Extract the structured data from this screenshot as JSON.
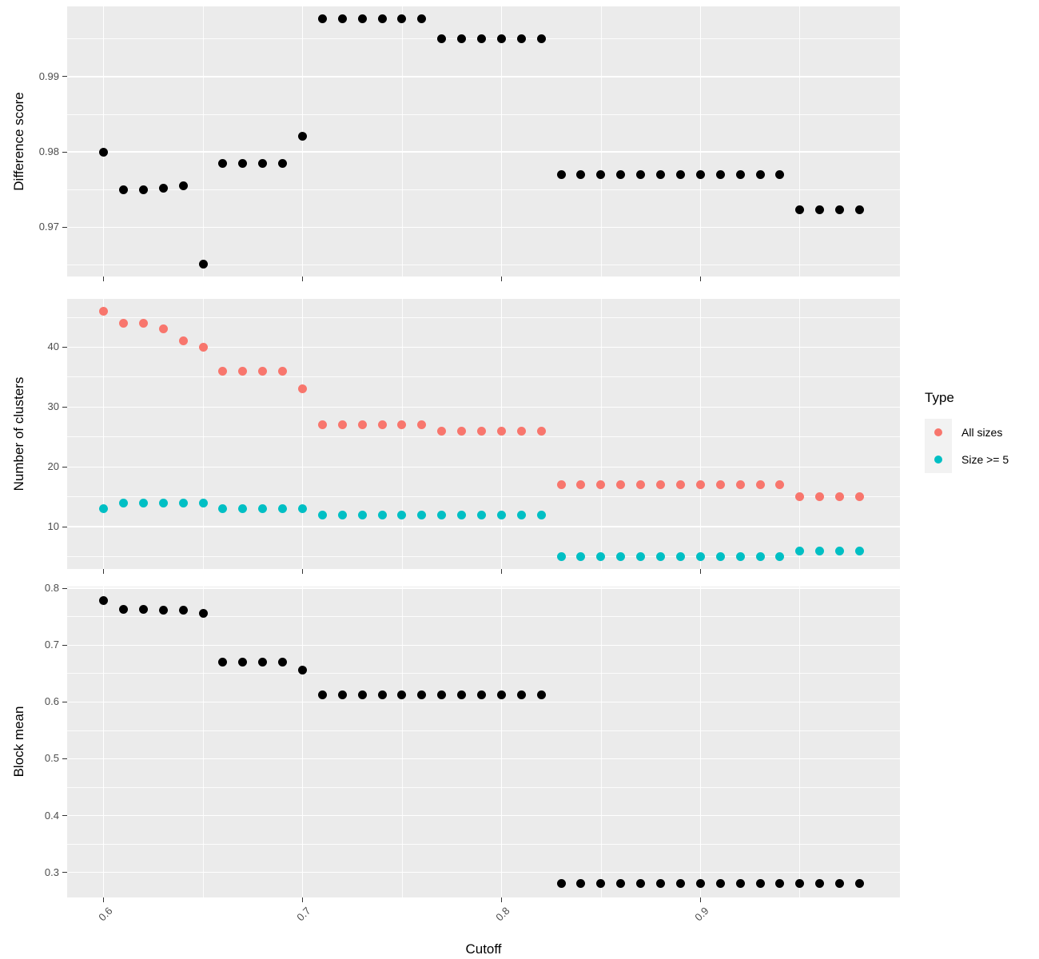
{
  "figure": {
    "xlabel": "Cutoff",
    "x_tick_labels": [
      "0.6",
      "0.7",
      "0.8",
      "0.9"
    ],
    "legend": {
      "title": "Type",
      "position": "right",
      "items": [
        {
          "label": "All sizes",
          "color": "#F8766D"
        },
        {
          "label": "Size >= 5",
          "color": "#00BFC4"
        }
      ]
    },
    "colors": {
      "background": "#FFFFFF",
      "panel_background": "#EBEBEB",
      "gridline": "#FFFFFF",
      "tick_text": "#4D4D4D",
      "axis_title_text": "#000000",
      "black_points": "#000000",
      "all_sizes_points": "#F8766D",
      "size_ge_5_points": "#00BFC4",
      "legend_key_background": "#F2F2F2"
    }
  },
  "x_axis": {
    "label": "Cutoff",
    "ticks": [
      0.6,
      0.7,
      0.8,
      0.9
    ],
    "minor_ticks": [
      0.65,
      0.75,
      0.85,
      0.95
    ],
    "xlim": [
      0.5817,
      1.0003
    ]
  },
  "chart_data": [
    {
      "type": "scatter",
      "ylabel": "Difference score",
      "xlabel": "Cutoff",
      "grid": true,
      "ylim": [
        0.96347,
        0.99933
      ],
      "yticks": [
        0.97,
        0.98,
        0.99
      ],
      "ytick_labels": [
        "0.97",
        "0.98",
        "0.99"
      ],
      "minor_yticks": [
        0.965,
        0.975,
        0.985,
        0.995
      ],
      "x": [
        0.6,
        0.61,
        0.62,
        0.63,
        0.64,
        0.65,
        0.66,
        0.67,
        0.68,
        0.69,
        0.7,
        0.71,
        0.72,
        0.73,
        0.74,
        0.75,
        0.76,
        0.77,
        0.78,
        0.79,
        0.8,
        0.81,
        0.82,
        0.83,
        0.84,
        0.85,
        0.86,
        0.87,
        0.88,
        0.89,
        0.9,
        0.91,
        0.92,
        0.93,
        0.94,
        0.95,
        0.96,
        0.97,
        0.98
      ],
      "series": [
        {
          "name": "Difference score",
          "color": "#000000",
          "values": [
            0.98,
            0.975,
            0.975,
            0.9752,
            0.9755,
            0.9651,
            0.9785,
            0.9785,
            0.9785,
            0.9785,
            0.9821,
            0.9977,
            0.9977,
            0.9977,
            0.9977,
            0.9977,
            0.9977,
            0.995,
            0.995,
            0.995,
            0.995,
            0.995,
            0.995,
            0.977,
            0.977,
            0.977,
            0.977,
            0.977,
            0.977,
            0.977,
            0.977,
            0.977,
            0.977,
            0.977,
            0.977,
            0.9723,
            0.9723,
            0.9723,
            0.9723
          ]
        }
      ]
    },
    {
      "type": "scatter",
      "ylabel": "Number of clusters",
      "xlabel": "Cutoff",
      "grid": true,
      "legend_title": "Type",
      "ylim": [
        2.95,
        48.05
      ],
      "yticks": [
        10,
        20,
        30,
        40
      ],
      "ytick_labels": [
        "10",
        "20",
        "30",
        "40"
      ],
      "minor_yticks": [
        5,
        15,
        25,
        35,
        45
      ],
      "x": [
        0.6,
        0.61,
        0.62,
        0.63,
        0.64,
        0.65,
        0.66,
        0.67,
        0.68,
        0.69,
        0.7,
        0.71,
        0.72,
        0.73,
        0.74,
        0.75,
        0.76,
        0.77,
        0.78,
        0.79,
        0.8,
        0.81,
        0.82,
        0.83,
        0.84,
        0.85,
        0.86,
        0.87,
        0.88,
        0.89,
        0.9,
        0.91,
        0.92,
        0.93,
        0.94,
        0.95,
        0.96,
        0.97,
        0.98
      ],
      "series": [
        {
          "name": "All sizes",
          "color": "#F8766D",
          "values": [
            46,
            44,
            44,
            43,
            41,
            40,
            36,
            36,
            36,
            36,
            33,
            27,
            27,
            27,
            27,
            27,
            27,
            26,
            26,
            26,
            26,
            26,
            26,
            17,
            17,
            17,
            17,
            17,
            17,
            17,
            17,
            17,
            17,
            17,
            17,
            15,
            15,
            15,
            15
          ]
        },
        {
          "name": "Size >= 5",
          "color": "#00BFC4",
          "values": [
            13,
            14,
            14,
            14,
            14,
            14,
            13,
            13,
            13,
            13,
            13,
            12,
            12,
            12,
            12,
            12,
            12,
            12,
            12,
            12,
            12,
            12,
            12,
            5,
            5,
            5,
            5,
            5,
            5,
            5,
            5,
            5,
            5,
            5,
            5,
            6,
            6,
            6,
            6
          ]
        }
      ]
    },
    {
      "type": "scatter",
      "ylabel": "Block mean",
      "xlabel": "Cutoff",
      "grid": true,
      "ylim": [
        0.2561,
        0.8029
      ],
      "yticks": [
        0.3,
        0.4,
        0.5,
        0.6,
        0.7,
        0.8
      ],
      "ytick_labels": [
        "0.3",
        "0.4",
        "0.5",
        "0.6",
        "0.7",
        "0.8"
      ],
      "minor_yticks": [
        0.35,
        0.45,
        0.55,
        0.65,
        0.75
      ],
      "x": [
        0.6,
        0.61,
        0.62,
        0.63,
        0.64,
        0.65,
        0.66,
        0.67,
        0.68,
        0.69,
        0.7,
        0.71,
        0.72,
        0.73,
        0.74,
        0.75,
        0.76,
        0.77,
        0.78,
        0.79,
        0.8,
        0.81,
        0.82,
        0.83,
        0.84,
        0.85,
        0.86,
        0.87,
        0.88,
        0.89,
        0.9,
        0.91,
        0.92,
        0.93,
        0.94,
        0.95,
        0.96,
        0.97,
        0.98
      ],
      "series": [
        {
          "name": "Block mean",
          "color": "#000000",
          "values": [
            0.778,
            0.763,
            0.763,
            0.762,
            0.761,
            0.756,
            0.67,
            0.67,
            0.67,
            0.67,
            0.656,
            0.612,
            0.612,
            0.612,
            0.612,
            0.612,
            0.612,
            0.612,
            0.612,
            0.612,
            0.612,
            0.612,
            0.612,
            0.281,
            0.281,
            0.281,
            0.281,
            0.281,
            0.281,
            0.281,
            0.281,
            0.281,
            0.281,
            0.281,
            0.281,
            0.281,
            0.281,
            0.281,
            0.281
          ]
        }
      ]
    }
  ]
}
